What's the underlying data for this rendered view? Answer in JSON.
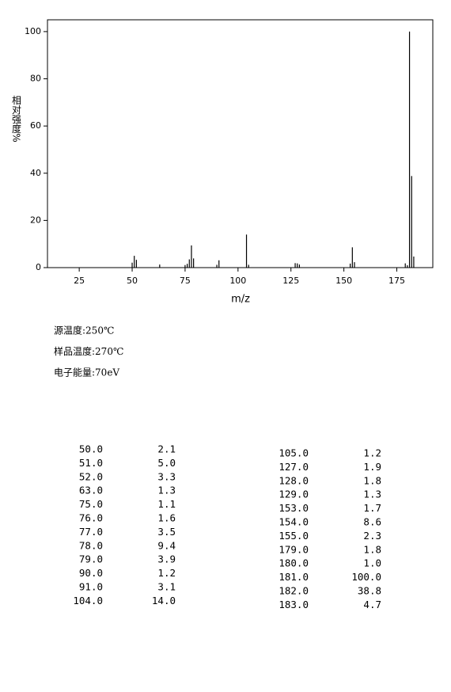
{
  "chart_data": {
    "type": "bar",
    "y_label": "相对强度%",
    "x_label": "m/z",
    "x": [
      50,
      51,
      52,
      63,
      75,
      76,
      77,
      78,
      79,
      90,
      91,
      104,
      105,
      127,
      128,
      129,
      153,
      154,
      155,
      179,
      180,
      181,
      182,
      183
    ],
    "values": [
      2.1,
      5.0,
      3.3,
      1.3,
      1.1,
      1.6,
      3.5,
      9.4,
      3.9,
      1.2,
      3.1,
      14.0,
      1.2,
      1.9,
      1.8,
      1.3,
      1.7,
      8.6,
      2.3,
      1.8,
      1.0,
      100.0,
      38.8,
      4.7
    ],
    "color": "#000000",
    "xlim": [
      10,
      192
    ],
    "xticks": [
      25,
      50,
      75,
      100,
      125,
      150,
      175
    ],
    "ylim": [
      0,
      105
    ],
    "yticks": [
      0,
      20,
      40,
      60,
      80,
      100
    ]
  },
  "conditions": [
    "源温度:250℃",
    "样品温度:270℃",
    "电子能量:70eV"
  ],
  "peak_table": {
    "left": [
      [
        "50.0",
        "2.1"
      ],
      [
        "51.0",
        "5.0"
      ],
      [
        "52.0",
        "3.3"
      ],
      [
        "63.0",
        "1.3"
      ],
      [
        "75.0",
        "1.1"
      ],
      [
        "76.0",
        "1.6"
      ],
      [
        "77.0",
        "3.5"
      ],
      [
        "78.0",
        "9.4"
      ],
      [
        "79.0",
        "3.9"
      ],
      [
        "90.0",
        "1.2"
      ],
      [
        "91.0",
        "3.1"
      ],
      [
        "104.0",
        "14.0"
      ]
    ],
    "right": [
      [
        "105.0",
        "1.2"
      ],
      [
        "127.0",
        "1.9"
      ],
      [
        "128.0",
        "1.8"
      ],
      [
        "129.0",
        "1.3"
      ],
      [
        "153.0",
        "1.7"
      ],
      [
        "154.0",
        "8.6"
      ],
      [
        "155.0",
        "2.3"
      ],
      [
        "179.0",
        "1.8"
      ],
      [
        "180.0",
        "1.0"
      ],
      [
        "181.0",
        "100.0"
      ],
      [
        "182.0",
        "38.8"
      ],
      [
        "183.0",
        "4.7"
      ]
    ]
  }
}
